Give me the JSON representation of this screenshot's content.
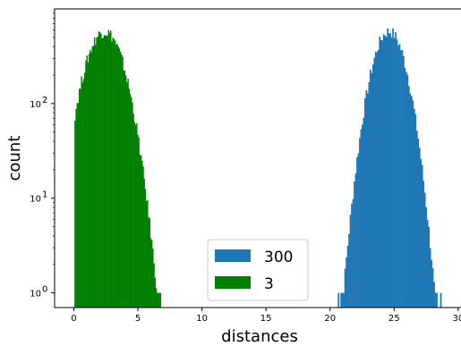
{
  "chart_data": {
    "type": "bar",
    "title": "",
    "xlabel": "distances",
    "ylabel": "count",
    "xlim": [
      -1.5,
      30.5
    ],
    "ylim": [
      0.7,
      1000
    ],
    "yscale": "log",
    "grid": false,
    "legend_position": "bottom-center",
    "x_ticks": [
      0,
      5,
      10,
      15,
      20,
      25,
      30
    ],
    "x_tick_labels": [
      "0",
      "5",
      "10",
      "15",
      "20",
      "25",
      "30"
    ],
    "y_ticks": [
      1,
      10,
      100
    ],
    "y_tick_labels": [
      "10",
      "10",
      "10"
    ],
    "y_tick_exponents": [
      "0",
      "1",
      "2"
    ],
    "series": [
      {
        "name": "300",
        "color": "#1f77b4",
        "center": 24.6,
        "sd": 1.0,
        "peak": 580,
        "x_range": [
          20.6,
          28.9
        ]
      },
      {
        "name": "3",
        "color": "#008000",
        "center": 2.4,
        "sd": 1.15,
        "peak": 580,
        "x_range": [
          0.05,
          6.8
        ]
      }
    ]
  }
}
